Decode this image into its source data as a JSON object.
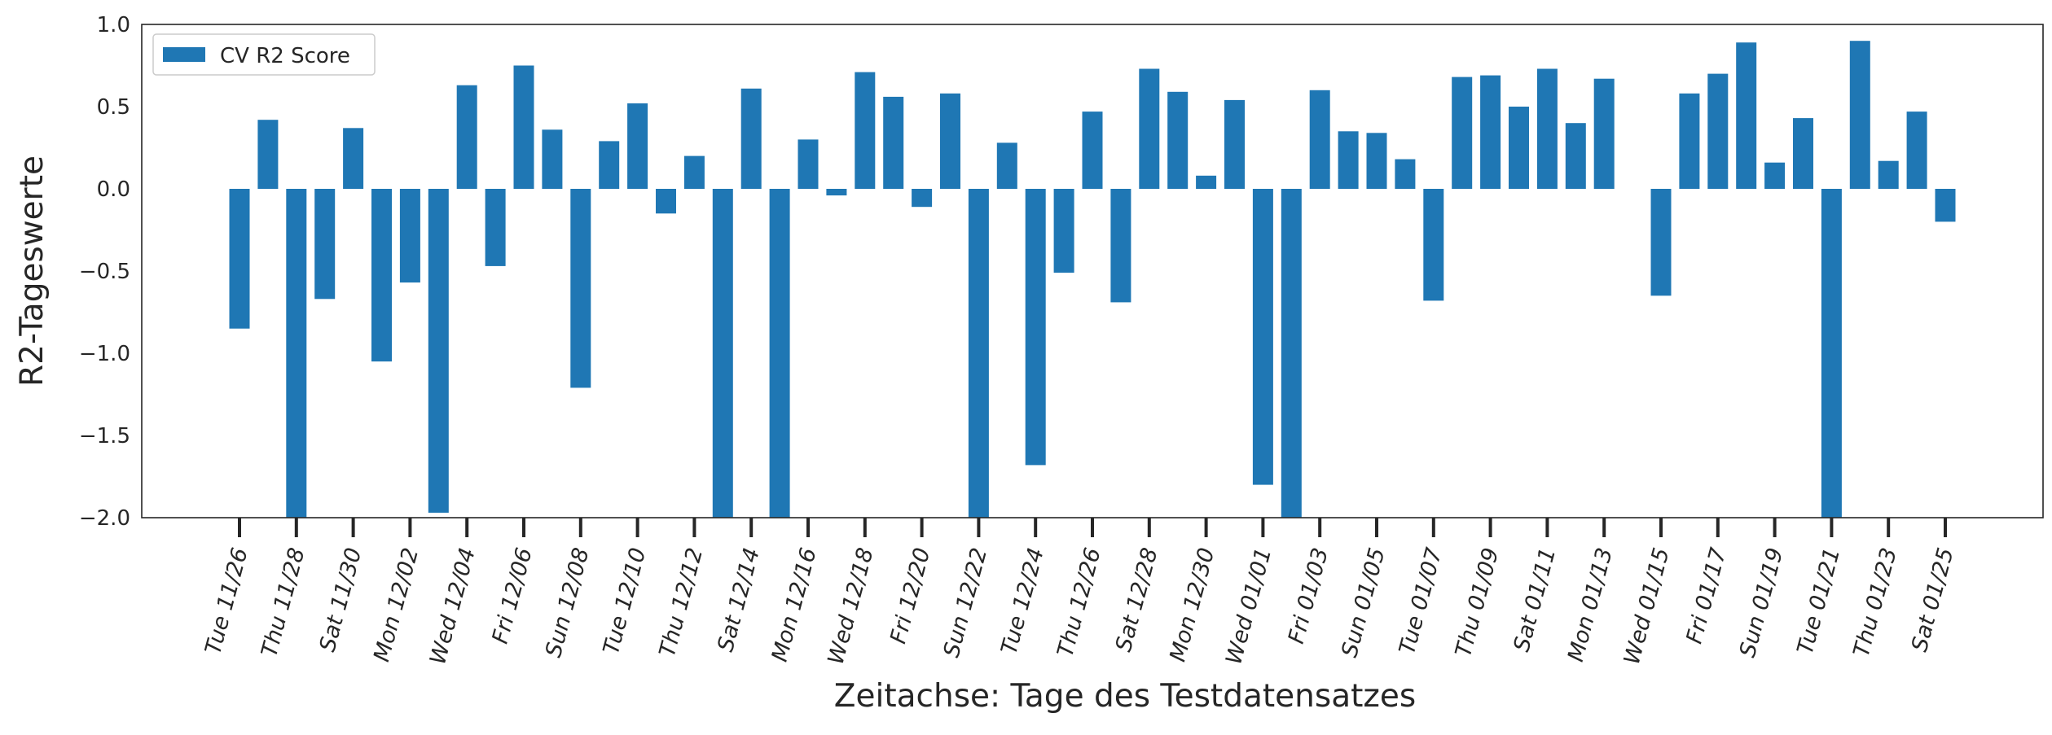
{
  "chart_data": {
    "type": "bar",
    "xlabel": "Zeitachse: Tage des Testdatensatzes",
    "ylabel": "R2-Tageswerte",
    "ylim": [
      -2.0,
      1.0
    ],
    "y_ticks": [
      "1.0",
      "0.5",
      "0.0",
      "−0.5",
      "−1.0",
      "−1.5",
      "−2.0"
    ],
    "y_tick_values": [
      1.0,
      0.5,
      0.0,
      -0.5,
      -1.0,
      -1.5,
      -2.0
    ],
    "grid": false,
    "legend_position": "top-left",
    "series": [
      {
        "name": "CV R2 Score",
        "color": "#1f77b4",
        "values": [
          -0.85,
          0.42,
          -2.0,
          -0.67,
          0.37,
          -1.05,
          -0.57,
          -1.97,
          0.63,
          -0.47,
          0.75,
          0.36,
          -1.21,
          0.29,
          0.52,
          -0.15,
          0.2,
          -2.0,
          0.61,
          -2.0,
          0.3,
          -0.04,
          0.71,
          0.56,
          -0.11,
          0.58,
          -2.0,
          0.28,
          -1.68,
          -0.51,
          0.47,
          -0.69,
          0.73,
          0.59,
          0.08,
          0.54,
          -1.8,
          -2.0,
          0.6,
          0.35,
          0.34,
          0.18,
          -0.68,
          0.68,
          0.69,
          0.5,
          0.73,
          0.4,
          0.67,
          0.0,
          -0.65,
          0.58,
          0.7,
          0.89,
          0.16,
          0.43,
          -2.0,
          0.9,
          0.17,
          0.47,
          -0.2
        ]
      }
    ],
    "x_tick_labels": [
      "Tue 11/26",
      "Thu 11/28",
      "Sat 11/30",
      "Mon 12/02",
      "Wed 12/04",
      "Fri 12/06",
      "Sun 12/08",
      "Tue 12/10",
      "Thu 12/12",
      "Sat 12/14",
      "Mon 12/16",
      "Wed 12/18",
      "Fri 12/20",
      "Sun 12/22",
      "Tue 12/24",
      "Thu 12/26",
      "Sat 12/28",
      "Mon 12/30",
      "Wed 01/01",
      "Fri 01/03",
      "Sun 01/05",
      "Tue 01/07",
      "Thu 01/09",
      "Sat 01/11",
      "Mon 01/13",
      "Wed 01/15",
      "Fri 01/17",
      "Sun 01/19",
      "Tue 01/21",
      "Thu 01/23",
      "Sat 01/25"
    ]
  }
}
